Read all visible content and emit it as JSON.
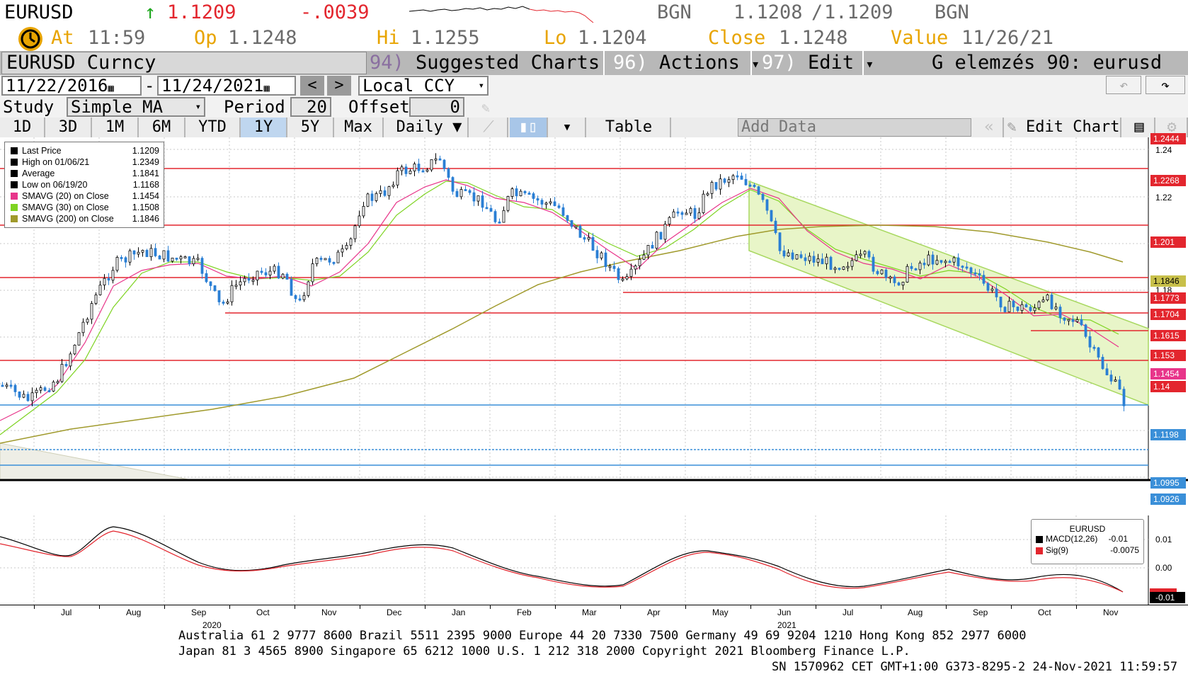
{
  "quote": {
    "ticker": "EURUSD",
    "arrow": "↑",
    "last": "1.1209",
    "change": "-.0039",
    "source1": "BGN",
    "bid": "1.1208",
    "sep": "/",
    "ask": "1.1209",
    "source2": "BGN",
    "at_label": "At",
    "at_time": "11:59",
    "op_label": "Op",
    "op": "1.1248",
    "hi_label": "Hi",
    "hi": "1.1255",
    "lo_label": "Lo",
    "lo": "1.1204",
    "close_label": "Close",
    "close": "1.1248",
    "value_label": "Value",
    "value_date": "11/26/21"
  },
  "menubar": {
    "security": "EURUSD Curncy",
    "suggested_num": "94)",
    "suggested_label": "Suggested Charts",
    "actions_num": "96)",
    "actions_label": "Actions",
    "edit_num": "97)",
    "edit_label": "Edit",
    "arrow": "▾",
    "title": "G elemzés 90: eurusd"
  },
  "controls": {
    "start_date": "11/22/2016",
    "dash": "-",
    "end_date": "11/24/2021",
    "prev": "<",
    "next": ">",
    "currency": "Local CCY",
    "study_label": "Study",
    "study_value": "Simple MA",
    "period_label": "Period",
    "period_value": "20",
    "offset_label": "Offset",
    "offset_value": "0"
  },
  "tabs": [
    {
      "label": "1D",
      "selected": false
    },
    {
      "label": "3D",
      "selected": false
    },
    {
      "label": "1M",
      "selected": false
    },
    {
      "label": "6M",
      "selected": false
    },
    {
      "label": "YTD",
      "selected": false
    },
    {
      "label": "1Y",
      "selected": true
    },
    {
      "label": "5Y",
      "selected": false
    },
    {
      "label": "Max",
      "selected": false
    }
  ],
  "toolbar": {
    "frequency": "Daily ▼",
    "table": "Table",
    "add_data_placeholder": "Add Data",
    "edit_chart": "Edit Chart"
  },
  "legend": {
    "rows": [
      {
        "label": "Last Price",
        "value": "1.1209",
        "color": "#000000"
      },
      {
        "label": "High on 01/06/21",
        "value": "1.2349",
        "color": "#000000"
      },
      {
        "label": "Average",
        "value": "1.1841",
        "color": "#000000"
      },
      {
        "label": "Low on 06/19/20",
        "value": "1.1168",
        "color": "#000000"
      },
      {
        "label": "SMAVG (20)  on Close",
        "value": "1.1454",
        "color": "#e8358a"
      },
      {
        "label": "SMAVG (30)  on Close",
        "value": "1.1508",
        "color": "#7ed321"
      },
      {
        "label": "SMAVG (200)  on Close",
        "value": "1.1846",
        "color": "#a09a2c"
      }
    ]
  },
  "price_axis": {
    "ticks": [
      "1.24",
      "1.22",
      "1.18"
    ],
    "tags": [
      {
        "value": "1.2444",
        "color": "#e3262e"
      },
      {
        "value": "1.2268",
        "color": "#e3262e"
      },
      {
        "value": "1.201",
        "color": "#e3262e"
      },
      {
        "value": "1.1846",
        "color": "#c8c04a"
      },
      {
        "value": "1.1773",
        "color": "#e3262e"
      },
      {
        "value": "1.1704",
        "color": "#e3262e"
      },
      {
        "value": "1.1615",
        "color": "#e3262e"
      },
      {
        "value": "1.153",
        "color": "#e3262e"
      },
      {
        "value": "1.1454",
        "color": "#e8358a"
      },
      {
        "value": "1.14",
        "color": "#e3262e"
      },
      {
        "value": "1.1198",
        "color": "#3a8fd8"
      },
      {
        "value": "1.0995",
        "color": "#3a8fd8"
      },
      {
        "value": "1.0926",
        "color": "#3a8fd8"
      }
    ]
  },
  "macd": {
    "title": "EURUSD",
    "macd_label": "MACD(12,26)",
    "macd_value": "-0.01",
    "sig_label": "Sig(9)",
    "sig_value": "-0.0075",
    "ticks": [
      "0.01",
      "0.00"
    ],
    "tag_value": "-0.01"
  },
  "x_axis": {
    "months": [
      "Jul",
      "Aug",
      "Sep",
      "Oct",
      "Nov",
      "Dec",
      "Jan",
      "Feb",
      "Mar",
      "Apr",
      "May",
      "Jun",
      "Jul",
      "Aug",
      "Sep",
      "Oct",
      "Nov"
    ],
    "year1": "2020",
    "year2": "2021"
  },
  "footer": {
    "line1": "Australia 61 2 9777 8600 Brazil 5511 2395 9000 Europe 44 20 7330 7500 Germany 49 69 9204 1210 Hong Kong 852 2977 6000",
    "line2": "Japan 81 3 4565 8900       Singapore 65 6212 1000      U.S. 1 212 318 2000          Copyright 2021 Bloomberg Finance L.P.",
    "line3": "SN 1570962 CET  GMT+1:00 G373-8295-2 24-Nov-2021 11:59:57"
  },
  "colors": {
    "accent_orange": "#e8a400",
    "up_green": "#1ea71e",
    "down_red": "#e3262e",
    "candle_up": "#000000",
    "candle_down": "#2a7fd4",
    "channel_fill": "#e8f5c8"
  }
}
